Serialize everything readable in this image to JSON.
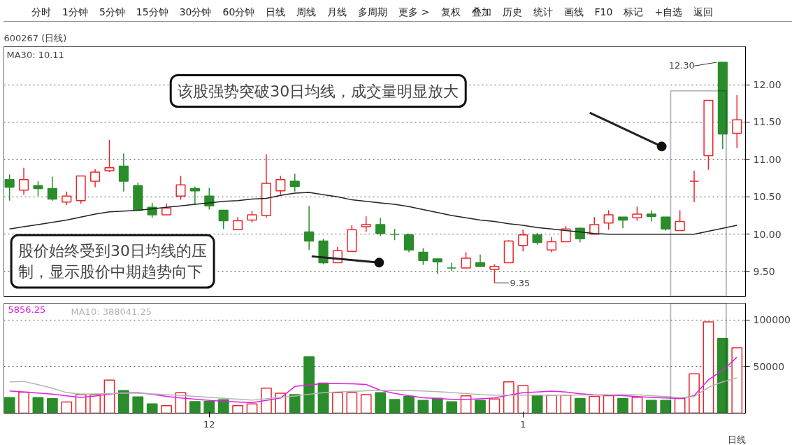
{
  "chart_data": [
    {
      "type": "candlestick",
      "title": "600267 (日线)",
      "categories": [
        null,
        null,
        null,
        null,
        null,
        null,
        null,
        null,
        null,
        null,
        null,
        null,
        null,
        null,
        null,
        null,
        null,
        null,
        null,
        null,
        null,
        null,
        null,
        null,
        null,
        null,
        null,
        null,
        null,
        null,
        null,
        null,
        null,
        null,
        null,
        null,
        null,
        null,
        null,
        null,
        null,
        null,
        null,
        null,
        null,
        null,
        null,
        null,
        null,
        null,
        null,
        null
      ],
      "ohlc": [
        [
          10.73,
          10.8,
          10.45,
          10.63
        ],
        [
          10.59,
          10.89,
          10.53,
          10.73
        ],
        [
          10.65,
          10.71,
          10.51,
          10.61
        ],
        [
          10.61,
          10.77,
          10.45,
          10.47
        ],
        [
          10.43,
          10.57,
          10.39,
          10.51
        ],
        [
          10.45,
          10.78,
          10.41,
          10.78
        ],
        [
          10.71,
          10.87,
          10.63,
          10.83
        ],
        [
          10.85,
          11.26,
          10.83,
          10.89
        ],
        [
          10.91,
          11.08,
          10.57,
          10.71
        ],
        [
          10.65,
          10.69,
          10.31,
          10.32
        ],
        [
          10.36,
          10.42,
          10.22,
          10.26
        ],
        [
          10.26,
          10.41,
          10.26,
          10.35
        ],
        [
          10.51,
          10.78,
          10.46,
          10.66
        ],
        [
          10.61,
          10.64,
          10.39,
          10.58
        ],
        [
          10.51,
          10.62,
          10.33,
          10.38
        ],
        [
          10.32,
          10.32,
          10.07,
          10.18
        ],
        [
          10.06,
          10.23,
          10.06,
          10.18
        ],
        [
          10.19,
          10.31,
          10.16,
          10.26
        ],
        [
          10.25,
          11.07,
          10.22,
          10.68
        ],
        [
          10.58,
          10.78,
          10.53,
          10.73
        ],
        [
          10.71,
          10.81,
          10.57,
          10.64
        ],
        [
          10.03,
          10.38,
          9.79,
          9.91
        ],
        [
          9.91,
          9.94,
          9.6,
          9.62
        ],
        [
          9.62,
          9.83,
          9.62,
          9.78
        ],
        [
          9.77,
          10.12,
          9.77,
          10.06
        ],
        [
          10.1,
          10.24,
          10.03,
          10.13
        ],
        [
          10.13,
          10.22,
          9.98,
          10.01
        ],
        [
          10.0,
          10.07,
          9.92,
          10.0
        ],
        [
          9.99,
          10.01,
          9.76,
          9.79
        ],
        [
          9.76,
          9.81,
          9.59,
          9.65
        ],
        [
          9.67,
          9.67,
          9.47,
          9.63
        ],
        [
          9.55,
          9.62,
          9.51,
          9.55
        ],
        [
          9.55,
          9.76,
          9.55,
          9.68
        ],
        [
          9.62,
          9.73,
          9.57,
          9.57
        ],
        [
          9.53,
          9.6,
          9.35,
          9.57
        ],
        [
          9.62,
          9.92,
          9.62,
          9.91
        ],
        [
          9.85,
          10.06,
          9.77,
          9.99
        ],
        [
          9.99,
          10.02,
          9.86,
          9.89
        ],
        [
          9.79,
          9.96,
          9.76,
          9.9
        ],
        [
          9.9,
          10.11,
          9.9,
          10.07
        ],
        [
          10.08,
          10.09,
          9.89,
          9.94
        ],
        [
          10.0,
          10.23,
          10.0,
          10.13
        ],
        [
          10.15,
          10.32,
          10.06,
          10.26
        ],
        [
          10.23,
          10.23,
          10.08,
          10.19
        ],
        [
          10.22,
          10.37,
          10.18,
          10.27
        ],
        [
          10.27,
          10.32,
          10.17,
          10.24
        ],
        [
          10.23,
          10.23,
          10.05,
          10.07
        ],
        [
          10.05,
          10.32,
          10.05,
          10.17
        ],
        [
          10.71,
          10.85,
          10.43,
          10.71
        ],
        [
          11.05,
          11.79,
          10.86,
          11.79
        ],
        [
          12.3,
          12.3,
          11.14,
          11.34
        ],
        [
          11.35,
          11.86,
          11.15,
          11.53
        ]
      ],
      "colors": [
        "#2a8c2a",
        "#e8262b",
        "#2a8c2a",
        "#2a8c2a",
        "#e8262b",
        "#e8262b",
        "#e8262b",
        "#e8262b",
        "#2a8c2a",
        "#2a8c2a",
        "#2a8c2a",
        "#e8262b",
        "#e8262b",
        "#2a8c2a",
        "#2a8c2a",
        "#2a8c2a",
        "#e8262b",
        "#e8262b",
        "#e8262b",
        "#e8262b",
        "#2a8c2a",
        "#2a8c2a",
        "#2a8c2a",
        "#e8262b",
        "#e8262b",
        "#e8262b",
        "#2a8c2a",
        "#2a8c2a",
        "#2a8c2a",
        "#2a8c2a",
        "#2a8c2a",
        "#2a8c2a",
        "#e8262b",
        "#2a8c2a",
        "#e8262b",
        "#e8262b",
        "#e8262b",
        "#2a8c2a",
        "#e8262b",
        "#e8262b",
        "#2a8c2a",
        "#e8262b",
        "#e8262b",
        "#2a8c2a",
        "#e8262b",
        "#2a8c2a",
        "#2a8c2a",
        "#e8262b",
        "#e8262b",
        "#e8262b",
        "#2a8c2a",
        "#e8262b"
      ],
      "series": [
        {
          "type": "line",
          "color": "#222222",
          "values": [
            10.07,
            10.1,
            10.13,
            10.16,
            10.19,
            10.23,
            10.27,
            10.3,
            10.31,
            10.32,
            10.34,
            10.36,
            10.38,
            10.4,
            10.42,
            10.44,
            10.45,
            10.47,
            10.48,
            10.52,
            10.55,
            10.56,
            10.53,
            10.5,
            10.46,
            10.44,
            10.42,
            10.4,
            10.37,
            10.33,
            10.29,
            10.25,
            10.22,
            10.19,
            10.17,
            10.14,
            10.12,
            10.09,
            10.07,
            10.05,
            10.03,
            10.01,
            10.0,
            10.0,
            10.0,
            10.0,
            10.0,
            10.0,
            10.0,
            10.04,
            10.08,
            10.12
          ]
        }
      ],
      "ylim": [
        9.17,
        12.51
      ],
      "yticks": [
        {
          "value": 9.5,
          "label": "9.50"
        },
        {
          "value": 10,
          "label": "10.00"
        },
        {
          "value": 10.5,
          "label": "10.50"
        },
        {
          "value": 11,
          "label": "11.00"
        },
        {
          "value": 11.5,
          "label": "11.50"
        },
        {
          "value": 12,
          "label": "12.00"
        }
      ],
      "tick_labels": "y",
      "grid": "y",
      "annotations": [
        "该股强势突破30日均线，成交量明显放大",
        "股价始终受到30日均线的压制，显示股价中期趋势向下",
        "MA30: 10.11",
        "12.30",
        "9.35",
        "分时",
        "1分钟",
        "5分钟",
        "15分钟",
        "30分钟",
        "60分钟",
        "日线",
        "周线",
        "月线",
        "多周期",
        "更多 >",
        "复权",
        "叠加",
        "历史",
        "统计",
        "画线",
        "F10",
        "标记",
        "+自选",
        "返回"
      ]
    },
    {
      "type": "bar",
      "categories": [
        null,
        null,
        null,
        null,
        null,
        null,
        null,
        null,
        null,
        null,
        null,
        null,
        null,
        null,
        "12",
        null,
        null,
        null,
        null,
        null,
        null,
        null,
        null,
        null,
        null,
        null,
        null,
        null,
        null,
        null,
        null,
        null,
        null,
        null,
        null,
        null,
        "1",
        null,
        null,
        null,
        null,
        null,
        null,
        null,
        null,
        null,
        null,
        null,
        null,
        null,
        null,
        null
      ],
      "series": [
        {
          "type": "bar",
          "values": [
            16650,
            22560,
            16650,
            15580,
            12090,
            19880,
            19880,
            35460,
            24170,
            17460,
            9940,
            8060,
            22030,
            12360,
            12620,
            14500,
            8060,
            9940,
            26860,
            21490,
            19880,
            60440,
            32230,
            22030,
            22030,
            19880,
            22030,
            14570,
            18000,
            13710,
            16000,
            12290,
            18570,
            13710,
            15140,
            33710,
            29430,
            19430,
            19430,
            19430,
            15710,
            18000,
            18860,
            15710,
            17140,
            13710,
            13710,
            15710,
            42290,
            98000,
            80290,
            70290
          ],
          "colors": [
            "#2a8c2a",
            "#e8262b",
            "#2a8c2a",
            "#2a8c2a",
            "#e8262b",
            "#e8262b",
            "#e8262b",
            "#e8262b",
            "#2a8c2a",
            "#2a8c2a",
            "#2a8c2a",
            "#e8262b",
            "#e8262b",
            "#2a8c2a",
            "#2a8c2a",
            "#2a8c2a",
            "#e8262b",
            "#e8262b",
            "#e8262b",
            "#e8262b",
            "#2a8c2a",
            "#2a8c2a",
            "#2a8c2a",
            "#e8262b",
            "#e8262b",
            "#e8262b",
            "#2a8c2a",
            "#2a8c2a",
            "#2a8c2a",
            "#2a8c2a",
            "#2a8c2a",
            "#2a8c2a",
            "#e8262b",
            "#2a8c2a",
            "#e8262b",
            "#e8262b",
            "#e8262b",
            "#2a8c2a",
            "#e8262b",
            "#e8262b",
            "#2a8c2a",
            "#e8262b",
            "#e8262b",
            "#2a8c2a",
            "#e8262b",
            "#2a8c2a",
            "#2a8c2a",
            "#e8262b",
            "#e8262b",
            "#e8262b",
            "#2a8c2a",
            "#e8262b"
          ]
        },
        {
          "type": "line",
          "color": "#e020e0",
          "values": [
            23900,
            22800,
            21700,
            20500,
            18600,
            17000,
            18400,
            20500,
            22030,
            22030,
            20300,
            18100,
            16300,
            15000,
            13700,
            12700,
            12000,
            11300,
            13800,
            16300,
            28700,
            30200,
            31900,
            31800,
            31600,
            30800,
            24600,
            21200,
            18800,
            16500,
            15700,
            14900,
            14900,
            15500,
            16300,
            19300,
            21900,
            22800,
            23600,
            22700,
            20800,
            19700,
            19300,
            18800,
            17800,
            17000,
            16400,
            15700,
            18860,
            35900,
            46000,
            60000
          ]
        },
        {
          "type": "line",
          "color": "#b4b4b4",
          "values": [
            33580,
            34100,
            30600,
            26900,
            22100,
            20400,
            20700,
            21000,
            21700,
            21500,
            20700,
            19900,
            19100,
            18100,
            17100,
            16050,
            15000,
            14000,
            15500,
            17000,
            18500,
            20300,
            22000,
            22700,
            23400,
            24000,
            24600,
            24500,
            24200,
            23900,
            23200,
            22100,
            21000,
            19900,
            19430,
            19430,
            19430,
            19430,
            19430,
            19430,
            19500,
            19600,
            19800,
            19900,
            19800,
            18800,
            17800,
            16800,
            17800,
            27800,
            33600,
            38000
          ]
        }
      ],
      "ylim": [
        0,
        118000
      ],
      "yticks": [
        50000,
        100000
      ],
      "grid": "y",
      "annotations": [
        "5856.25",
        "MA10: 388041.25",
        "日线"
      ]
    }
  ]
}
